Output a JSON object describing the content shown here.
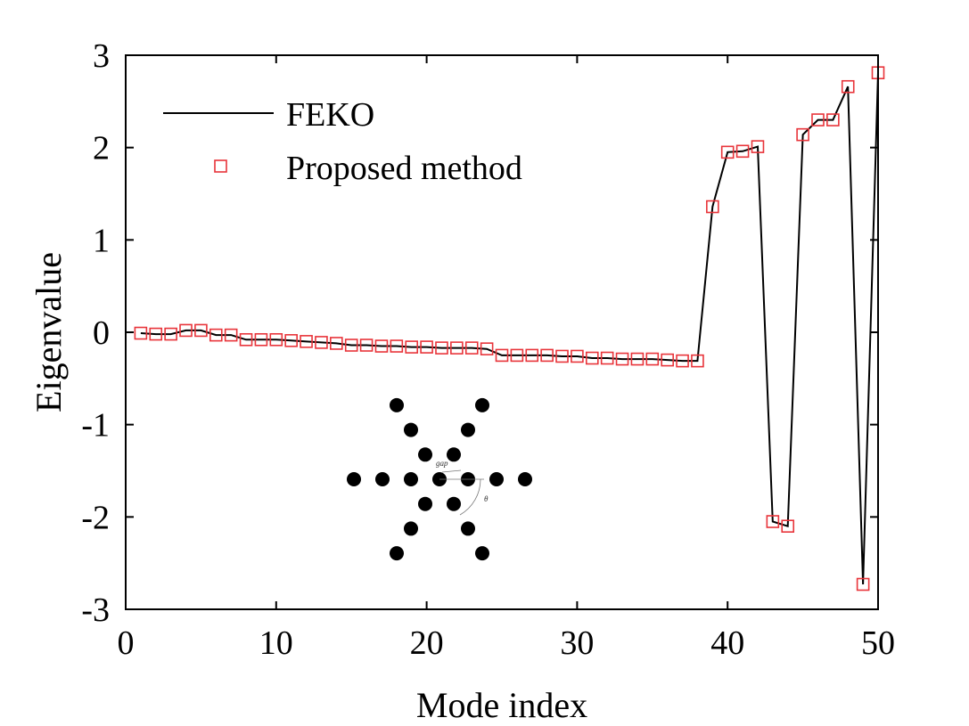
{
  "chart_data": {
    "type": "line",
    "xlabel": "Mode index",
    "ylabel": "Eigenvalue",
    "xlim": [
      0,
      50
    ],
    "ylim": [
      -3,
      3
    ],
    "xticks": [
      "0",
      "10",
      "20",
      "30",
      "40",
      "50"
    ],
    "yticks": [
      "-3",
      "-2",
      "-1",
      "0",
      "1",
      "2",
      "3"
    ],
    "grid": false,
    "legend_position": "top-left",
    "series": [
      {
        "name": "FEKO",
        "style": "line",
        "color": "#000000",
        "x": [
          1,
          2,
          3,
          4,
          5,
          6,
          7,
          8,
          9,
          10,
          11,
          12,
          13,
          14,
          15,
          16,
          17,
          18,
          19,
          20,
          21,
          22,
          23,
          24,
          25,
          26,
          27,
          28,
          29,
          30,
          31,
          32,
          33,
          34,
          35,
          36,
          37,
          38,
          39,
          40,
          41,
          42,
          43,
          44,
          45,
          46,
          47,
          48,
          49,
          50
        ],
        "values": [
          -0.01,
          -0.02,
          -0.02,
          0.02,
          0.02,
          -0.03,
          -0.03,
          -0.08,
          -0.08,
          -0.08,
          -0.09,
          -0.1,
          -0.11,
          -0.12,
          -0.14,
          -0.14,
          -0.15,
          -0.15,
          -0.16,
          -0.16,
          -0.17,
          -0.17,
          -0.17,
          -0.18,
          -0.25,
          -0.25,
          -0.25,
          -0.25,
          -0.26,
          -0.26,
          -0.28,
          -0.28,
          -0.29,
          -0.29,
          -0.29,
          -0.3,
          -0.31,
          -0.31,
          1.36,
          1.95,
          1.96,
          2.01,
          -2.05,
          -2.1,
          2.14,
          2.3,
          2.3,
          2.66,
          -2.73,
          2.81
        ]
      },
      {
        "name": "Proposed method",
        "style": "markers",
        "marker": "square",
        "color": "#e8343a",
        "x": [
          1,
          2,
          3,
          4,
          5,
          6,
          7,
          8,
          9,
          10,
          11,
          12,
          13,
          14,
          15,
          16,
          17,
          18,
          19,
          20,
          21,
          22,
          23,
          24,
          25,
          26,
          27,
          28,
          29,
          30,
          31,
          32,
          33,
          34,
          35,
          36,
          37,
          38,
          39,
          40,
          41,
          42,
          43,
          44,
          45,
          46,
          47,
          48,
          49,
          50
        ],
        "values": [
          -0.01,
          -0.02,
          -0.02,
          0.02,
          0.02,
          -0.03,
          -0.03,
          -0.08,
          -0.08,
          -0.08,
          -0.09,
          -0.1,
          -0.11,
          -0.12,
          -0.14,
          -0.14,
          -0.15,
          -0.15,
          -0.16,
          -0.16,
          -0.17,
          -0.17,
          -0.17,
          -0.18,
          -0.25,
          -0.25,
          -0.25,
          -0.25,
          -0.26,
          -0.26,
          -0.28,
          -0.28,
          -0.29,
          -0.29,
          -0.29,
          -0.3,
          -0.31,
          -0.31,
          1.36,
          1.95,
          1.96,
          2.01,
          -2.05,
          -2.1,
          2.14,
          2.3,
          2.3,
          2.66,
          -2.73,
          2.81
        ]
      }
    ],
    "inset": {
      "description_labels": [
        "gap",
        "θ"
      ]
    }
  }
}
